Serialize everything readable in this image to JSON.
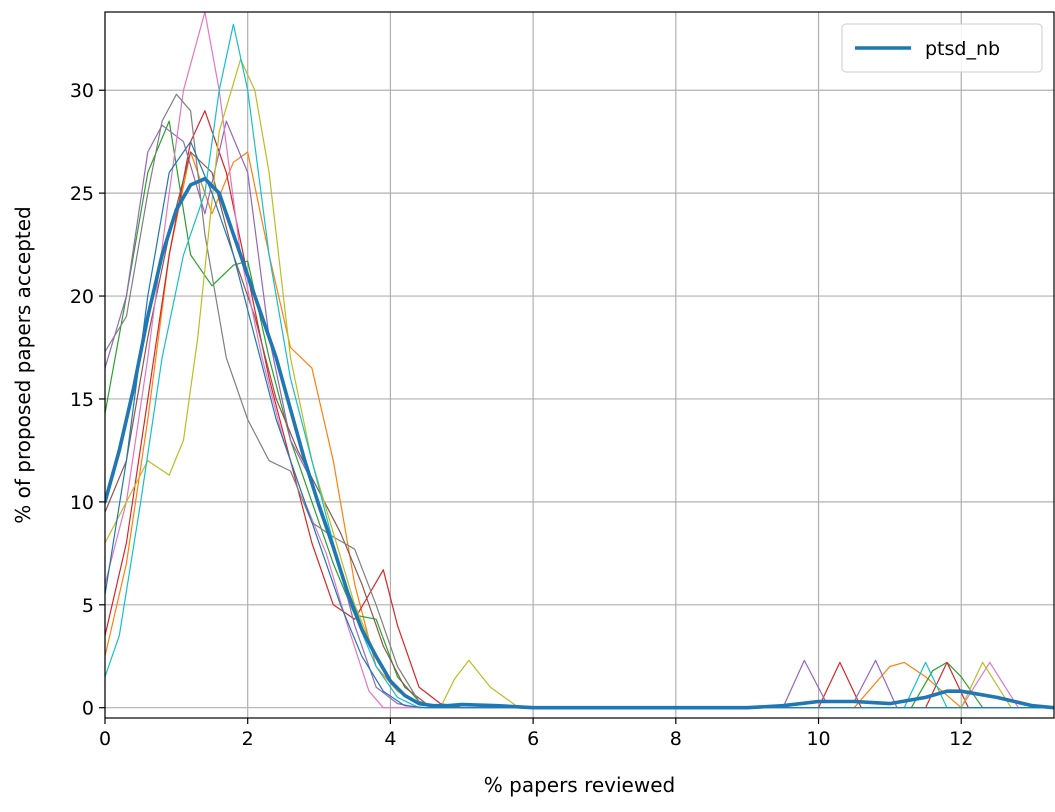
{
  "chart_data": {
    "type": "line",
    "title": "",
    "xlabel": "% papers reviewed",
    "ylabel": "% of proposed papers accepted",
    "xlim": [
      0,
      13.3
    ],
    "ylim": [
      -0.5,
      33.8
    ],
    "xticks": [
      0,
      2,
      4,
      6,
      8,
      10,
      12
    ],
    "xtick_labels": [
      "0",
      "2",
      "4",
      "6",
      "8",
      "10",
      "12"
    ],
    "yticks": [
      0,
      5,
      10,
      15,
      20,
      25,
      30
    ],
    "ytick_labels": [
      "0",
      "5",
      "10",
      "15",
      "20",
      "25",
      "30"
    ],
    "grid": true,
    "legend": {
      "placement": "top-right",
      "entries": [
        "ptsd_nb"
      ]
    },
    "series": [
      {
        "name": "ptsd_nb",
        "color": "#1f77b4",
        "emphasis": true,
        "x": [
          0,
          0.2,
          0.4,
          0.6,
          0.8,
          1.0,
          1.2,
          1.4,
          1.6,
          1.8,
          2.0,
          2.2,
          2.4,
          2.6,
          2.8,
          3.0,
          3.2,
          3.4,
          3.6,
          3.8,
          4.0,
          4.2,
          4.4,
          4.6,
          4.8,
          5.0,
          5.5,
          6.0,
          8.0,
          9.0,
          9.5,
          10.0,
          10.5,
          11.0,
          11.5,
          11.8,
          12.0,
          12.5,
          13.0,
          13.3
        ],
        "y": [
          10,
          12.5,
          15.5,
          19,
          22,
          24.2,
          25.4,
          25.7,
          25,
          23,
          21,
          19,
          17,
          14.5,
          12,
          9.8,
          7.8,
          5.6,
          3.8,
          2.5,
          1.3,
          0.6,
          0.2,
          0.1,
          0.1,
          0.15,
          0.1,
          0,
          0,
          0,
          0.1,
          0.3,
          0.3,
          0.2,
          0.5,
          0.8,
          0.8,
          0.5,
          0.1,
          0
        ]
      },
      {
        "name": "",
        "color": "#ff7f0e",
        "x": [
          0,
          0.3,
          0.6,
          0.9,
          1.2,
          1.5,
          1.8,
          2.0,
          2.3,
          2.6,
          2.9,
          3.2,
          3.5,
          3.8,
          4.1,
          4.4,
          4.7,
          5.0,
          9.0,
          10.5,
          11.0,
          11.2,
          11.5,
          12.0,
          13.3
        ],
        "y": [
          2.5,
          7,
          14,
          22,
          27,
          24,
          26.5,
          27,
          22,
          17.5,
          16.5,
          12,
          6,
          2,
          0.8,
          0.2,
          0,
          0,
          0,
          0,
          2,
          2.2,
          1.5,
          0,
          0
        ]
      },
      {
        "name": "",
        "color": "#2ca02c",
        "x": [
          0,
          0.3,
          0.6,
          0.9,
          1.2,
          1.5,
          1.8,
          2.0,
          2.3,
          2.6,
          2.9,
          3.2,
          3.5,
          3.8,
          4.1,
          4.4,
          4.7,
          5.0,
          9.0,
          11.3,
          11.6,
          11.8,
          12.0,
          12.3,
          13.3
        ],
        "y": [
          14.3,
          20,
          26,
          28.5,
          22,
          20.5,
          21.5,
          21.7,
          17,
          13,
          10,
          7,
          4.5,
          4.3,
          1.5,
          0.3,
          0,
          0,
          0,
          0,
          1.8,
          2.2,
          1.5,
          0,
          0
        ]
      },
      {
        "name": "",
        "color": "#d62728",
        "x": [
          0,
          0.3,
          0.6,
          0.9,
          1.2,
          1.4,
          1.7,
          2.0,
          2.3,
          2.6,
          2.9,
          3.2,
          3.5,
          3.7,
          3.9,
          4.1,
          4.4,
          4.7,
          5.0,
          9.0,
          10.0,
          10.3,
          10.6,
          11.5,
          11.8,
          12.1,
          13.3
        ],
        "y": [
          3.5,
          8,
          15,
          22,
          27.5,
          29,
          26,
          21,
          16,
          12,
          8,
          5,
          4.3,
          5.5,
          6.7,
          4,
          1,
          0.2,
          0,
          0,
          0,
          2.2,
          0,
          0,
          2.2,
          0,
          0
        ]
      },
      {
        "name": "",
        "color": "#9467bd",
        "x": [
          0,
          0.3,
          0.6,
          0.8,
          1.1,
          1.4,
          1.7,
          2.0,
          2.3,
          2.6,
          2.9,
          3.2,
          3.5,
          3.8,
          4.1,
          4.4,
          9.0,
          9.5,
          9.8,
          10.1,
          10.5,
          10.8,
          11.1,
          13.3
        ],
        "y": [
          16.5,
          20,
          27,
          28.3,
          27.5,
          24,
          28.5,
          26,
          18,
          13,
          11,
          8,
          4,
          1,
          0.2,
          0,
          0,
          0,
          2.3,
          0.3,
          0.3,
          2.3,
          0,
          0
        ]
      },
      {
        "name": "",
        "color": "#8c564b",
        "x": [
          0,
          0.3,
          0.6,
          0.9,
          1.2,
          1.5,
          1.8,
          2.1,
          2.4,
          2.7,
          3.0,
          3.3,
          3.6,
          3.9,
          4.2,
          4.5,
          4.8,
          9.0,
          13.3
        ],
        "y": [
          9.5,
          12,
          18,
          23,
          27,
          26,
          22,
          19,
          15,
          12.5,
          10.5,
          8.5,
          6,
          3,
          1,
          0.2,
          0,
          0,
          0
        ]
      },
      {
        "name": "",
        "color": "#e377c2",
        "x": [
          0,
          0.3,
          0.6,
          0.9,
          1.1,
          1.4,
          1.6,
          1.9,
          2.2,
          2.5,
          2.8,
          3.1,
          3.4,
          3.7,
          3.9,
          4.1,
          9.0,
          12.0,
          12.4,
          12.8,
          13.3
        ],
        "y": [
          6,
          10,
          17,
          25,
          30,
          33.8,
          30,
          22,
          17,
          13,
          10,
          7.5,
          4,
          0.8,
          0,
          0,
          0,
          0,
          2.2,
          0,
          0
        ]
      },
      {
        "name": "",
        "color": "#7f7f7f",
        "x": [
          0,
          0.3,
          0.6,
          0.8,
          1.0,
          1.2,
          1.4,
          1.7,
          2.0,
          2.3,
          2.6,
          2.9,
          3.2,
          3.5,
          3.8,
          4.1,
          4.4,
          4.7,
          9.0,
          13.3
        ],
        "y": [
          17.3,
          19,
          25,
          28.5,
          29.8,
          29,
          23,
          17,
          14,
          12,
          11.5,
          9,
          8.3,
          7.7,
          5,
          2,
          0.3,
          0,
          0,
          0
        ]
      },
      {
        "name": "",
        "color": "#bcbd22",
        "x": [
          0,
          0.3,
          0.6,
          0.9,
          1.1,
          1.3,
          1.6,
          1.9,
          2.1,
          2.3,
          2.6,
          2.9,
          3.2,
          3.5,
          3.8,
          4.1,
          4.4,
          4.7,
          4.9,
          5.1,
          5.4,
          5.8,
          9.0,
          12.0,
          12.3,
          12.7,
          13.3
        ],
        "y": [
          8,
          10,
          12,
          11.3,
          13,
          18,
          28,
          31.5,
          30,
          26,
          17,
          12,
          8.5,
          5,
          2.5,
          0.8,
          0.2,
          0,
          1.4,
          2.3,
          1,
          0,
          0,
          0,
          2.2,
          0,
          0
        ]
      },
      {
        "name": "",
        "color": "#17becf",
        "x": [
          0,
          0.2,
          0.5,
          0.8,
          1.1,
          1.4,
          1.6,
          1.8,
          2.0,
          2.3,
          2.6,
          2.9,
          3.2,
          3.5,
          3.8,
          4.1,
          4.4,
          9.0,
          11.2,
          11.5,
          11.8,
          13.3
        ],
        "y": [
          1.5,
          3.5,
          10,
          17,
          22,
          25,
          30,
          33.2,
          30,
          22,
          16,
          12,
          8,
          4.5,
          2,
          0.5,
          0,
          0,
          0,
          2.2,
          0,
          0
        ]
      },
      {
        "name": "",
        "color": "#1f77b4",
        "x": [
          0,
          0.3,
          0.6,
          0.9,
          1.2,
          1.5,
          1.8,
          2.1,
          2.4,
          2.7,
          3.0,
          3.3,
          3.6,
          3.9,
          4.2,
          4.5,
          9.0,
          13.3
        ],
        "y": [
          5.5,
          12,
          20,
          26,
          27.5,
          25,
          22,
          18,
          14,
          11,
          8,
          5,
          2.5,
          0.8,
          0.1,
          0,
          0,
          0
        ]
      }
    ]
  }
}
